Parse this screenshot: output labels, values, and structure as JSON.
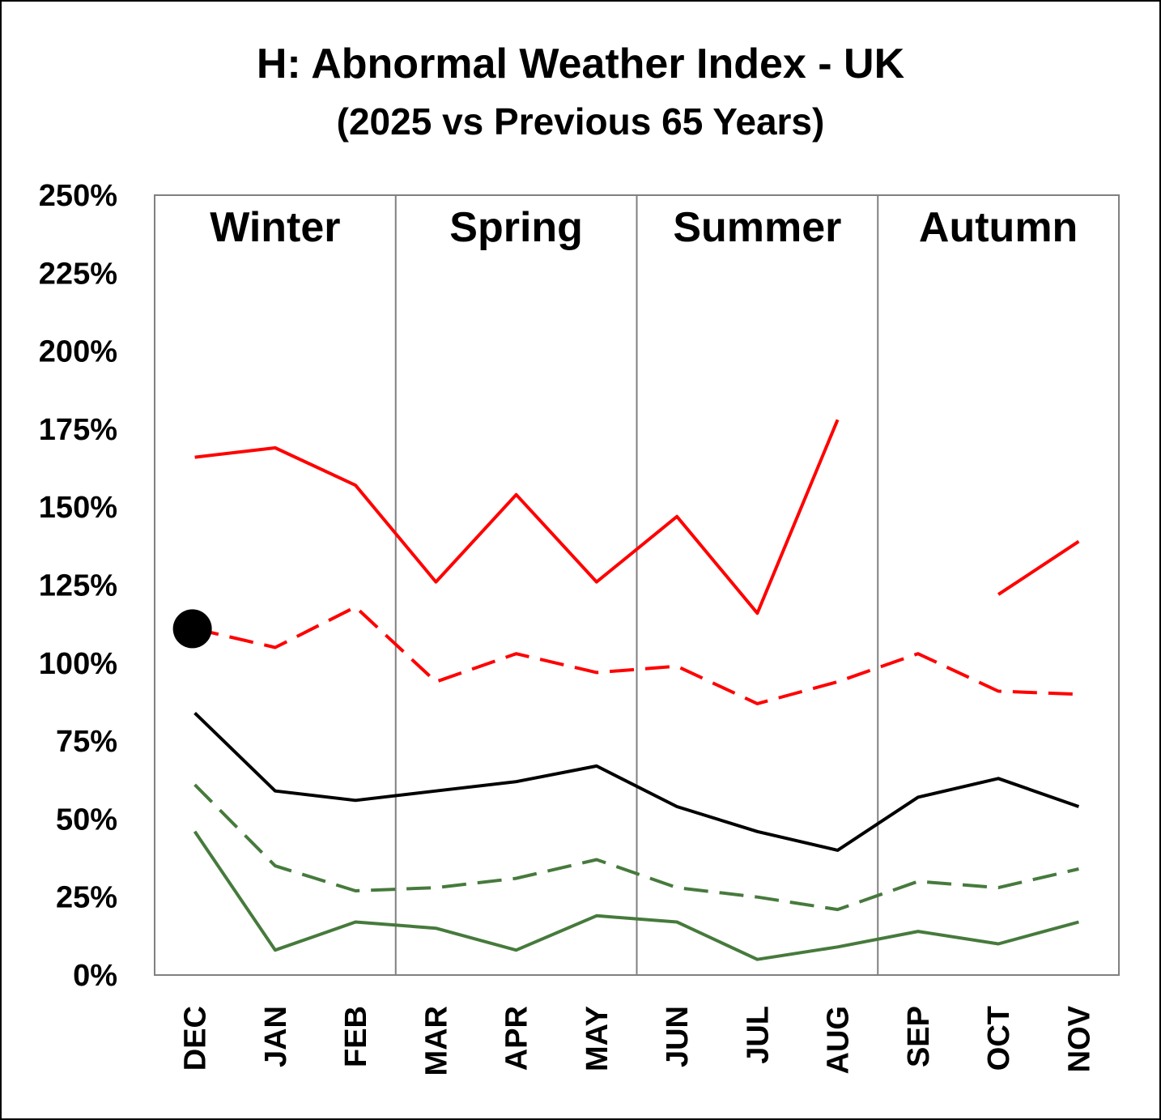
{
  "chart_data": {
    "type": "line",
    "title": "H: Abnormal Weather Index - UK",
    "subtitle": "(2025 vs Previous 65 Years)",
    "xlabel": "",
    "ylabel": "",
    "categories": [
      "DEC",
      "JAN",
      "FEB",
      "MAR",
      "APR",
      "MAY",
      "JUN",
      "JUL",
      "AUG",
      "SEP",
      "OCT",
      "NOV"
    ],
    "ylim": [
      0,
      250
    ],
    "yticks": [
      "0%",
      "25%",
      "50%",
      "75%",
      "100%",
      "125%",
      "150%",
      "175%",
      "200%",
      "225%",
      "250%"
    ],
    "seasons": [
      "Winter",
      "Spring",
      "Summer",
      "Autumn"
    ],
    "grid": false,
    "series": [
      {
        "color": "#ff0000",
        "dash": "solid",
        "values": [
          166,
          169,
          157,
          126,
          154,
          126,
          147,
          116,
          178,
          null,
          122,
          139
        ]
      },
      {
        "color": "#ff0000",
        "dash": "dashed",
        "values": [
          111,
          105,
          118,
          94,
          103,
          97,
          99,
          87,
          94,
          103,
          91,
          90
        ]
      },
      {
        "color": "#000000",
        "dash": "solid",
        "values": [
          84,
          59,
          56,
          59,
          62,
          67,
          54,
          46,
          40,
          57,
          63,
          54
        ]
      },
      {
        "color": "#467a3c",
        "dash": "dashed",
        "values": [
          61,
          35,
          27,
          28,
          31,
          37,
          28,
          25,
          21,
          30,
          28,
          34
        ]
      },
      {
        "color": "#467a3c",
        "dash": "solid",
        "values": [
          46,
          8,
          17,
          15,
          8,
          19,
          17,
          5,
          9,
          14,
          10,
          17
        ]
      }
    ],
    "highlight_point": {
      "category": "DEC",
      "value": 111,
      "color": "#000000"
    }
  }
}
